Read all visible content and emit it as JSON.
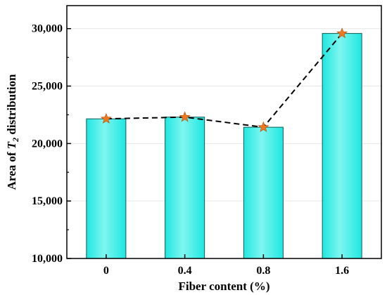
{
  "chart_data": {
    "type": "bar",
    "categories": [
      "0",
      "0.4",
      "0.8",
      "1.6"
    ],
    "values": [
      22150,
      22300,
      21420,
      29580
    ],
    "xlabel": "Fiber content (%)",
    "ylabel_prefix": "Area of ",
    "ylabel_symbol": "T",
    "ylabel_subscript": "2",
    "ylabel_suffix": " distribution",
    "ylim": [
      10000,
      32000
    ],
    "yticks": [
      10000,
      15000,
      20000,
      25000,
      30000
    ],
    "ytick_labels": [
      "10,000",
      "15,000",
      "20,000",
      "25,000",
      "30,000"
    ],
    "grid": true,
    "overlay": {
      "type": "line",
      "style": "dashed",
      "marker": "star",
      "values": [
        22150,
        22300,
        21420,
        29580
      ]
    },
    "colors": {
      "bar_fill": "#1ee8e0",
      "bar_fill_light": "#7ff5f0",
      "bar_stroke": "#0e5a55",
      "line": "#000000",
      "marker": "#f07820",
      "grid": "#e6e6e6"
    }
  }
}
